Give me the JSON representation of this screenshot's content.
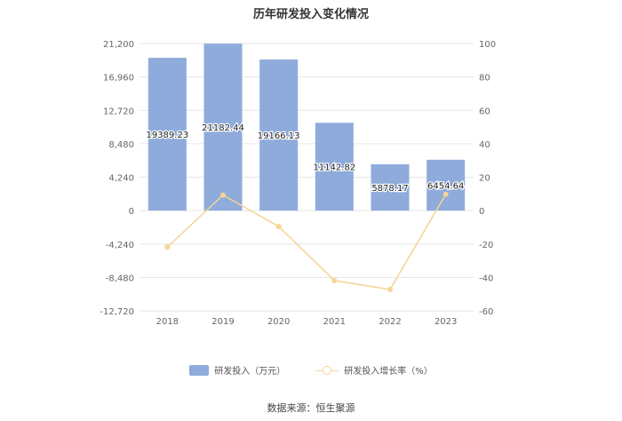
{
  "chart_data": {
    "type": "bar",
    "title": "历年研发投入变化情况",
    "categories": [
      "2018",
      "2019",
      "2020",
      "2021",
      "2022",
      "2023"
    ],
    "series": [
      {
        "name": "研发投入（万元）",
        "type": "bar",
        "axis": "left",
        "values": [
          19389.23,
          21182.44,
          19166.13,
          11142.82,
          5878.17,
          6454.64
        ],
        "labels": [
          "19389.23",
          "21182.44",
          "19166.13",
          "11142.82",
          "5878.17",
          "6454.64"
        ]
      },
      {
        "name": "研发投入增长率（%）",
        "type": "line",
        "axis": "right",
        "values": [
          -21.8,
          9.3,
          -9.5,
          -41.9,
          -47.2,
          9.8
        ]
      }
    ],
    "y_left": {
      "ticks": [
        "21,200",
        "16,960",
        "12,720",
        "8,480",
        "4,240",
        "0",
        "-4,240",
        "-8,480",
        "-12,720"
      ],
      "ylim": [
        -12720,
        21200
      ]
    },
    "y_right": {
      "ticks": [
        "100",
        "80",
        "60",
        "40",
        "20",
        "0",
        "-20",
        "-40",
        "-60"
      ],
      "ylim": [
        -60,
        100
      ]
    },
    "grid": true,
    "legend_position": "bottom",
    "colors": {
      "bar": "#8eabdb",
      "line": "#f7d394",
      "grid": "#e6e6e6",
      "axis_text": "#666666"
    }
  },
  "legend": {
    "bar_label": "研发投入（万元）",
    "line_label": "研发投入增长率（%）"
  },
  "source": "数据来源：恒生聚源"
}
